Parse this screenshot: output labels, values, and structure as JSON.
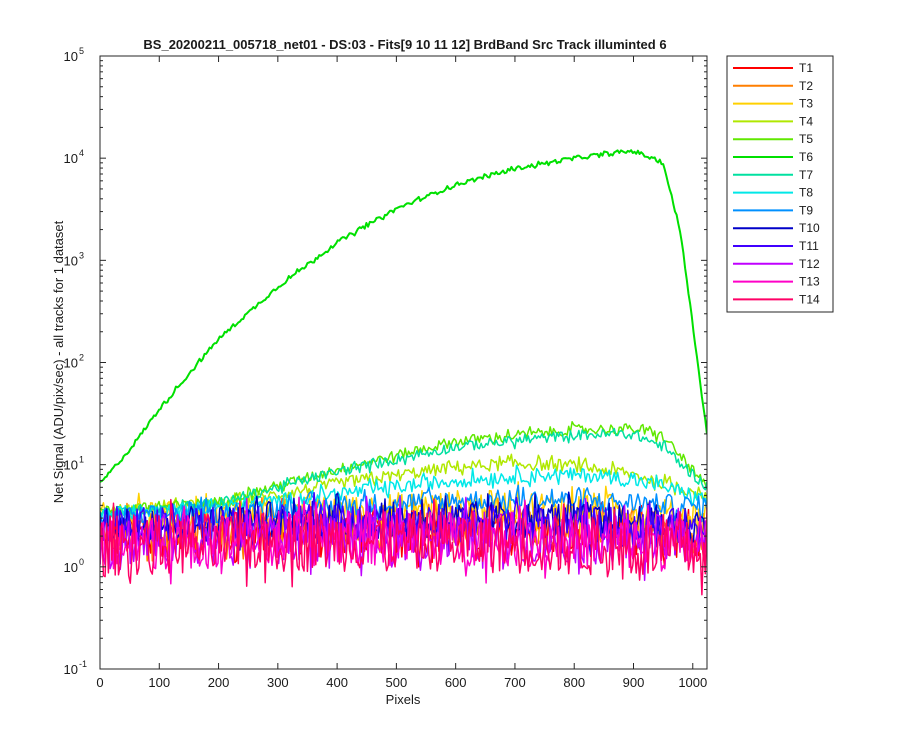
{
  "chart_data": {
    "type": "line",
    "title": "BS_20200211_005718_net01 - DS:03 - Fits[9  10  11  12]   BrdBand Src      Track illuminted 6",
    "xlabel": "Pixels",
    "ylabel": "Net Signal (ADU/pix/sec) - all tracks for 1 dataset",
    "x_range": [
      0,
      1024
    ],
    "y_range": [
      0.1,
      100000
    ],
    "y_scale": "log",
    "grid": false,
    "legend_position": "outside-right",
    "x_ticks": [
      "0",
      "100",
      "200",
      "300",
      "400",
      "500",
      "600",
      "700",
      "800",
      "900",
      "1000"
    ],
    "y_ticks": [
      {
        "base": "10",
        "exp": "-1"
      },
      {
        "base": "10",
        "exp": "0"
      },
      {
        "base": "10",
        "exp": "1"
      },
      {
        "base": "10",
        "exp": "2"
      },
      {
        "base": "10",
        "exp": "3"
      },
      {
        "base": "10",
        "exp": "4"
      },
      {
        "base": "10",
        "exp": "5"
      }
    ],
    "series": [
      {
        "name": "T1",
        "color": "#ff0000",
        "x": [
          0,
          200,
          400,
          600,
          800,
          1024
        ],
        "y": [
          2.0,
          2.1,
          2.2,
          2.2,
          2.1,
          1.9
        ],
        "noise": 0.22
      },
      {
        "name": "T2",
        "color": "#ff7f00",
        "x": [
          0,
          200,
          400,
          600,
          800,
          1024
        ],
        "y": [
          2.3,
          2.4,
          2.6,
          2.7,
          2.6,
          2.1
        ],
        "noise": 0.2
      },
      {
        "name": "T3",
        "color": "#ffd000",
        "x": [
          0,
          200,
          400,
          600,
          800,
          1024
        ],
        "y": [
          3.0,
          3.2,
          3.6,
          4.0,
          3.9,
          3.1
        ],
        "noise": 0.15
      },
      {
        "name": "T4",
        "color": "#b0e800",
        "x": [
          0,
          200,
          400,
          600,
          700,
          800,
          900,
          1024
        ],
        "y": [
          3.5,
          4.0,
          6.5,
          9.5,
          10.2,
          9.8,
          8.0,
          5.0
        ],
        "noise": 0.06
      },
      {
        "name": "T5",
        "color": "#60e800",
        "x": [
          0,
          200,
          400,
          600,
          800,
          900,
          950,
          1024
        ],
        "y": [
          3.5,
          4.3,
          9.0,
          17.0,
          22.0,
          22.5,
          19.0,
          6.0
        ],
        "noise": 0.05
      },
      {
        "name": "T6",
        "color": "#00e000",
        "x": [
          0,
          50,
          100,
          200,
          300,
          400,
          500,
          600,
          700,
          800,
          900,
          950,
          980,
          1024
        ],
        "y": [
          6.5,
          14,
          35,
          170,
          550,
          1500,
          3200,
          5500,
          7900,
          10000,
          11800,
          9000,
          1800,
          20
        ],
        "noise": 0.02
      },
      {
        "name": "T7",
        "color": "#00e0a0",
        "x": [
          0,
          200,
          400,
          600,
          800,
          900,
          950,
          1024
        ],
        "y": [
          3.4,
          4.2,
          8.5,
          15.0,
          19.5,
          20.0,
          15.0,
          6.0
        ],
        "noise": 0.05
      },
      {
        "name": "T8",
        "color": "#00e8e8",
        "x": [
          0,
          200,
          400,
          600,
          750,
          850,
          950,
          1024
        ],
        "y": [
          3.3,
          3.8,
          5.2,
          7.0,
          8.0,
          7.8,
          6.2,
          4.5
        ],
        "noise": 0.07
      },
      {
        "name": "T9",
        "color": "#0090ff",
        "x": [
          0,
          200,
          400,
          600,
          800,
          1024
        ],
        "y": [
          3.0,
          3.4,
          4.0,
          4.5,
          4.5,
          3.9
        ],
        "noise": 0.1
      },
      {
        "name": "T10",
        "color": "#0000c8",
        "x": [
          0,
          200,
          400,
          600,
          800,
          1024
        ],
        "y": [
          2.6,
          2.7,
          2.8,
          2.9,
          2.9,
          2.6
        ],
        "noise": 0.18
      },
      {
        "name": "T11",
        "color": "#4000ff",
        "x": [
          0,
          200,
          400,
          600,
          800,
          1024
        ],
        "y": [
          2.4,
          2.5,
          2.6,
          2.6,
          2.5,
          2.3
        ],
        "noise": 0.2
      },
      {
        "name": "T12",
        "color": "#c000ff",
        "x": [
          0,
          200,
          400,
          600,
          800,
          1024
        ],
        "y": [
          1.8,
          1.9,
          2.0,
          2.0,
          1.9,
          1.8
        ],
        "noise": 0.25
      },
      {
        "name": "T13",
        "color": "#ff00c8",
        "x": [
          0,
          200,
          400,
          600,
          800,
          1024
        ],
        "y": [
          1.7,
          1.8,
          1.9,
          1.9,
          1.8,
          1.6
        ],
        "noise": 0.27
      },
      {
        "name": "T14",
        "color": "#ff0066",
        "x": [
          0,
          200,
          400,
          600,
          800,
          1024
        ],
        "y": [
          1.6,
          1.7,
          1.8,
          1.8,
          1.6,
          1.4
        ],
        "noise": 0.3
      }
    ]
  }
}
